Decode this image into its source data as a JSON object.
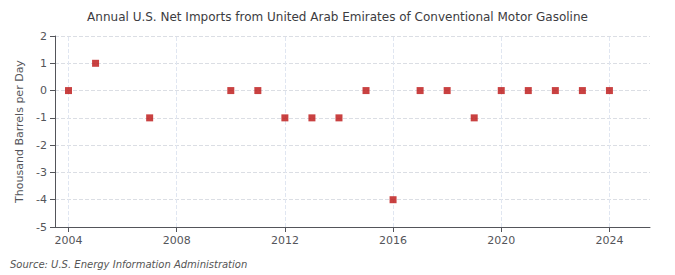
{
  "chart_data": {
    "type": "scatter",
    "title": "Annual U.S. Net Imports from United Arab Emirates of Conventional Motor Gasoline",
    "ylabel": "Thousand Barrels per Day",
    "annotation": "Source: U.S. Energy Information Administration",
    "x": [
      2004,
      2005,
      2007,
      2010,
      2011,
      2012,
      2013,
      2014,
      2015,
      2016,
      2017,
      2018,
      2019,
      2020,
      2021,
      2022,
      2023,
      2024
    ],
    "values": [
      0,
      1,
      -1,
      0,
      0,
      -1,
      -1,
      -1,
      0,
      -4,
      0,
      0,
      -1,
      0,
      0,
      0,
      0,
      0
    ],
    "color": "#bb1111",
    "marker": "square",
    "xlim": [
      2003.5,
      2025.5
    ],
    "xticks": [
      2004,
      2008,
      2012,
      2016,
      2020,
      2024
    ],
    "ylim": [
      -5,
      2
    ],
    "yticks": [
      -5,
      -4,
      -3,
      -2,
      -1,
      0,
      1,
      2
    ],
    "grid": true
  }
}
